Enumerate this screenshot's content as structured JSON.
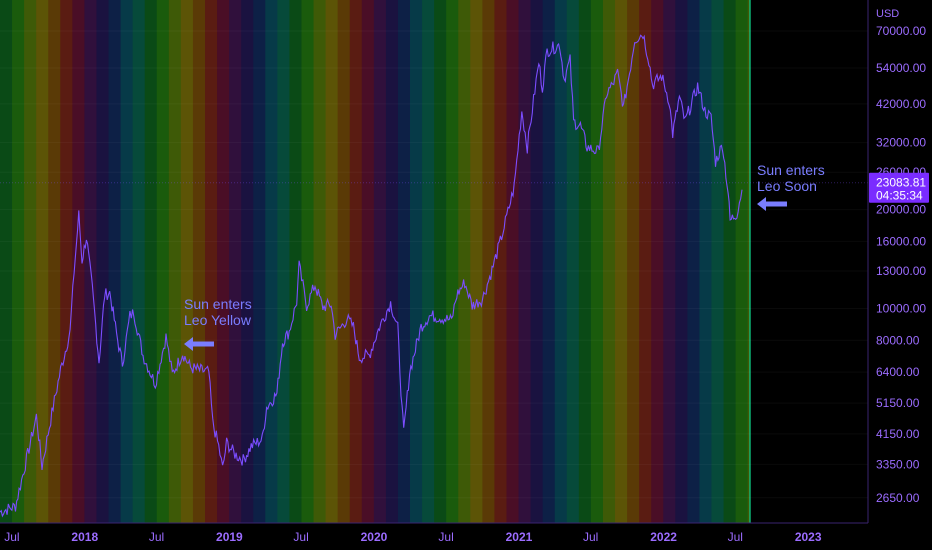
{
  "chart_data": {
    "type": "line",
    "title": "",
    "ylabel": "USD",
    "y_scale": "log",
    "ylim": [
      2300,
      84000
    ],
    "y_ticks": [
      2650,
      3350,
      4150,
      5150,
      6400,
      8000,
      10000,
      13000,
      16000,
      20000,
      26000,
      32000,
      42000,
      54000,
      70000
    ],
    "y_tick_labels": [
      "2650.00",
      "3350.00",
      "4150.00",
      "5150.00",
      "6400.00",
      "8000.00",
      "10000.00",
      "13000.00",
      "16000.00",
      "20000.00",
      "26000.00",
      "32000.00",
      "42000.00",
      "54000.00",
      "70000.00"
    ],
    "x_range": [
      "2017-06-01",
      "2023-06-01"
    ],
    "x_ticks": [
      {
        "date": "2017-07-01",
        "label": "Jul",
        "bold": false
      },
      {
        "date": "2018-01-01",
        "label": "2018",
        "bold": true
      },
      {
        "date": "2018-07-01",
        "label": "Jul",
        "bold": false
      },
      {
        "date": "2019-01-01",
        "label": "2019",
        "bold": true
      },
      {
        "date": "2019-07-01",
        "label": "Jul",
        "bold": false
      },
      {
        "date": "2020-01-01",
        "label": "2020",
        "bold": true
      },
      {
        "date": "2020-07-01",
        "label": "Jul",
        "bold": false
      },
      {
        "date": "2021-01-01",
        "label": "2021",
        "bold": true
      },
      {
        "date": "2021-07-01",
        "label": "Jul",
        "bold": false
      },
      {
        "date": "2022-01-01",
        "label": "2022",
        "bold": true
      },
      {
        "date": "2022-07-01",
        "label": "Jul",
        "bold": false
      },
      {
        "date": "2023-01-01",
        "label": "2023",
        "bold": true
      }
    ],
    "series": [
      {
        "color": "#7b4dff",
        "points": [
          [
            "2017-06-01",
            2400
          ],
          [
            "2017-07-10",
            2500
          ],
          [
            "2017-08-10",
            3600
          ],
          [
            "2017-09-01",
            4700
          ],
          [
            "2017-09-15",
            3300
          ],
          [
            "2017-10-10",
            4800
          ],
          [
            "2017-11-01",
            6500
          ],
          [
            "2017-11-25",
            8500
          ],
          [
            "2017-12-05",
            13000
          ],
          [
            "2017-12-17",
            19300
          ],
          [
            "2017-12-25",
            14000
          ],
          [
            "2018-01-05",
            16500
          ],
          [
            "2018-01-20",
            11500
          ],
          [
            "2018-02-06",
            6900
          ],
          [
            "2018-02-20",
            11000
          ],
          [
            "2018-03-05",
            11200
          ],
          [
            "2018-03-25",
            8000
          ],
          [
            "2018-04-06",
            6800
          ],
          [
            "2018-04-25",
            9500
          ],
          [
            "2018-05-05",
            9700
          ],
          [
            "2018-05-28",
            7200
          ],
          [
            "2018-06-15",
            6400
          ],
          [
            "2018-06-28",
            5900
          ],
          [
            "2018-07-25",
            8200
          ],
          [
            "2018-08-10",
            6300
          ],
          [
            "2018-09-05",
            7300
          ],
          [
            "2018-09-25",
            6600
          ],
          [
            "2018-10-15",
            6500
          ],
          [
            "2018-11-10",
            6400
          ],
          [
            "2018-11-20",
            4500
          ],
          [
            "2018-12-05",
            3800
          ],
          [
            "2018-12-15",
            3250
          ],
          [
            "2018-12-25",
            3900
          ],
          [
            "2019-01-15",
            3600
          ],
          [
            "2019-02-05",
            3450
          ],
          [
            "2019-02-25",
            3800
          ],
          [
            "2019-03-25",
            4000
          ],
          [
            "2019-04-05",
            5000
          ],
          [
            "2019-05-01",
            5500
          ],
          [
            "2019-05-15",
            7900
          ],
          [
            "2019-06-01",
            8500
          ],
          [
            "2019-06-20",
            10500
          ],
          [
            "2019-06-26",
            13500
          ],
          [
            "2019-07-15",
            10200
          ],
          [
            "2019-08-05",
            11800
          ],
          [
            "2019-08-25",
            10100
          ],
          [
            "2019-09-15",
            10300
          ],
          [
            "2019-09-25",
            8300
          ],
          [
            "2019-10-25",
            9300
          ],
          [
            "2019-11-10",
            8800
          ],
          [
            "2019-11-25",
            7100
          ],
          [
            "2019-12-20",
            7200
          ],
          [
            "2020-01-15",
            8800
          ],
          [
            "2020-02-12",
            10400
          ],
          [
            "2020-03-01",
            8700
          ],
          [
            "2020-03-12",
            4900
          ],
          [
            "2020-03-16",
            4200
          ],
          [
            "2020-03-31",
            6400
          ],
          [
            "2020-04-29",
            8800
          ],
          [
            "2020-05-20",
            9500
          ],
          [
            "2020-06-15",
            9400
          ],
          [
            "2020-07-15",
            9200
          ],
          [
            "2020-07-28",
            11000
          ],
          [
            "2020-08-17",
            12000
          ],
          [
            "2020-09-05",
            10200
          ],
          [
            "2020-10-01",
            10700
          ],
          [
            "2020-10-25",
            13100
          ],
          [
            "2020-11-15",
            16000
          ],
          [
            "2020-12-01",
            19000
          ],
          [
            "2020-12-20",
            23500
          ],
          [
            "2021-01-08",
            40000
          ],
          [
            "2021-01-22",
            31000
          ],
          [
            "2021-02-10",
            46000
          ],
          [
            "2021-02-20",
            56000
          ],
          [
            "2021-03-01",
            47000
          ],
          [
            "2021-03-13",
            61000
          ],
          [
            "2021-04-14",
            63500
          ],
          [
            "2021-04-25",
            50000
          ],
          [
            "2021-05-10",
            57000
          ],
          [
            "2021-05-19",
            37000
          ],
          [
            "2021-06-05",
            36000
          ],
          [
            "2021-06-22",
            31000
          ],
          [
            "2021-07-20",
            30000
          ],
          [
            "2021-08-10",
            45000
          ],
          [
            "2021-08-25",
            48000
          ],
          [
            "2021-09-07",
            52000
          ],
          [
            "2021-09-22",
            41000
          ],
          [
            "2021-10-10",
            55000
          ],
          [
            "2021-10-20",
            66000
          ],
          [
            "2021-11-10",
            68800
          ],
          [
            "2021-11-25",
            57000
          ],
          [
            "2021-12-04",
            48000
          ],
          [
            "2021-12-27",
            51000
          ],
          [
            "2022-01-15",
            43000
          ],
          [
            "2022-01-24",
            34000
          ],
          [
            "2022-02-10",
            44000
          ],
          [
            "2022-02-24",
            37000
          ],
          [
            "2022-03-28",
            47500
          ],
          [
            "2022-04-15",
            40000
          ],
          [
            "2022-05-01",
            38000
          ],
          [
            "2022-05-12",
            28000
          ],
          [
            "2022-05-30",
            31500
          ],
          [
            "2022-06-13",
            22500
          ],
          [
            "2022-06-18",
            18500
          ],
          [
            "2022-07-05",
            19500
          ],
          [
            "2022-07-18",
            23000
          ]
        ]
      }
    ],
    "last_value": {
      "price": "23083.81",
      "countdown": "04:35:34"
    }
  },
  "annotations": [
    {
      "lines": [
        "Sun enters",
        "Leo Yellow"
      ]
    },
    {
      "lines": [
        "Sun enters",
        "Leo Soon"
      ]
    }
  ],
  "colors": {
    "background": "#000000",
    "line": "#7b4dff",
    "axis_text": "#9b6cff",
    "annotation": "#7a7dff",
    "badge": "#7a2cff",
    "last_band": "#00e0a0"
  },
  "bands": {
    "palette": [
      "#0a4a16",
      "#1a5b0c",
      "#3e5a07",
      "#5c5406",
      "#5a3a06",
      "#5a1c12",
      "#4a0e26",
      "#30103c",
      "#1a1240",
      "#0d2046",
      "#063a48",
      "#064a3a"
    ],
    "band_days": 30.44
  }
}
